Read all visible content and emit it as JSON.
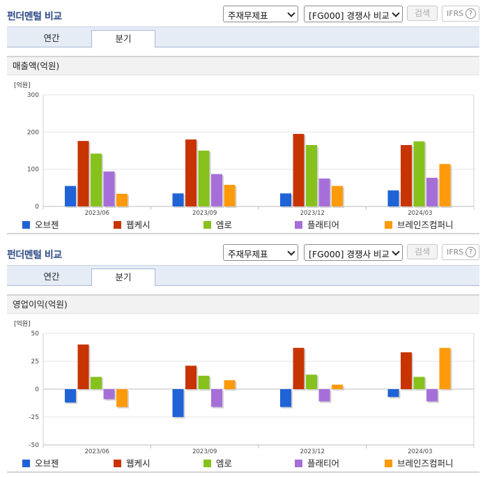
{
  "panels": [
    {
      "title": "펀더멘털 비교",
      "select_statement": "주재무제표",
      "select_compare": "[FG000] 경쟁사 비교",
      "search_label": "검색",
      "ifrs_label": "IFRS",
      "help_label": "?",
      "tabs": [
        {
          "label": "연간"
        },
        {
          "label": "분기"
        }
      ],
      "section_title": "매출액(억원)",
      "legend": [
        "오브젠",
        "웹케시",
        "엠로",
        "플래티어",
        "브레인즈컴퍼니"
      ]
    },
    {
      "title": "펀더멘털 비교",
      "select_statement": "주재무제표",
      "select_compare": "[FG000] 경쟁사 비교",
      "search_label": "검색",
      "ifrs_label": "IFRS",
      "help_label": "?",
      "tabs": [
        {
          "label": "연간"
        },
        {
          "label": "분기"
        }
      ],
      "section_title": "영업이익(억원)",
      "legend": [
        "오브젠",
        "웹케시",
        "엠로",
        "플래티어",
        "브레인즈컴퍼니"
      ]
    }
  ],
  "colors": [
    "#1f63d6",
    "#c83400",
    "#86c11c",
    "#a66fd8",
    "#ff9a0a"
  ],
  "chart_data": [
    {
      "type": "bar",
      "unit_label": "[억원]",
      "categories": [
        "2023/06",
        "2023/09",
        "2023/12",
        "2024/03"
      ],
      "ylim": [
        0,
        300
      ],
      "yticks": [
        0,
        100,
        200,
        300
      ],
      "grid": true,
      "legend_position": "bottom",
      "series": [
        {
          "name": "오브젠",
          "values": [
            55,
            35,
            35,
            43
          ]
        },
        {
          "name": "웹케시",
          "values": [
            176,
            180,
            195,
            165
          ]
        },
        {
          "name": "엠로",
          "values": [
            142,
            150,
            165,
            175
          ]
        },
        {
          "name": "플래티어",
          "values": [
            94,
            87,
            75,
            77
          ]
        },
        {
          "name": "브레인즈컴퍼니",
          "values": [
            34,
            58,
            55,
            114
          ]
        }
      ]
    },
    {
      "type": "bar",
      "unit_label": "[억원]",
      "categories": [
        "2023/06",
        "2023/09",
        "2023/12",
        "2024/03"
      ],
      "ylim": [
        -50,
        50
      ],
      "yticks": [
        -50,
        -25,
        0,
        25,
        50
      ],
      "grid": true,
      "legend_position": "bottom",
      "series": [
        {
          "name": "오브젠",
          "values": [
            -12,
            -25,
            -16,
            -7
          ]
        },
        {
          "name": "웹케시",
          "values": [
            40,
            21,
            37,
            33
          ]
        },
        {
          "name": "엠로",
          "values": [
            11,
            12,
            13,
            11
          ]
        },
        {
          "name": "플래티어",
          "values": [
            -9,
            -16,
            -11,
            -11
          ]
        },
        {
          "name": "브레인즈컴퍼니",
          "values": [
            -16,
            8,
            4,
            37
          ]
        }
      ]
    }
  ]
}
